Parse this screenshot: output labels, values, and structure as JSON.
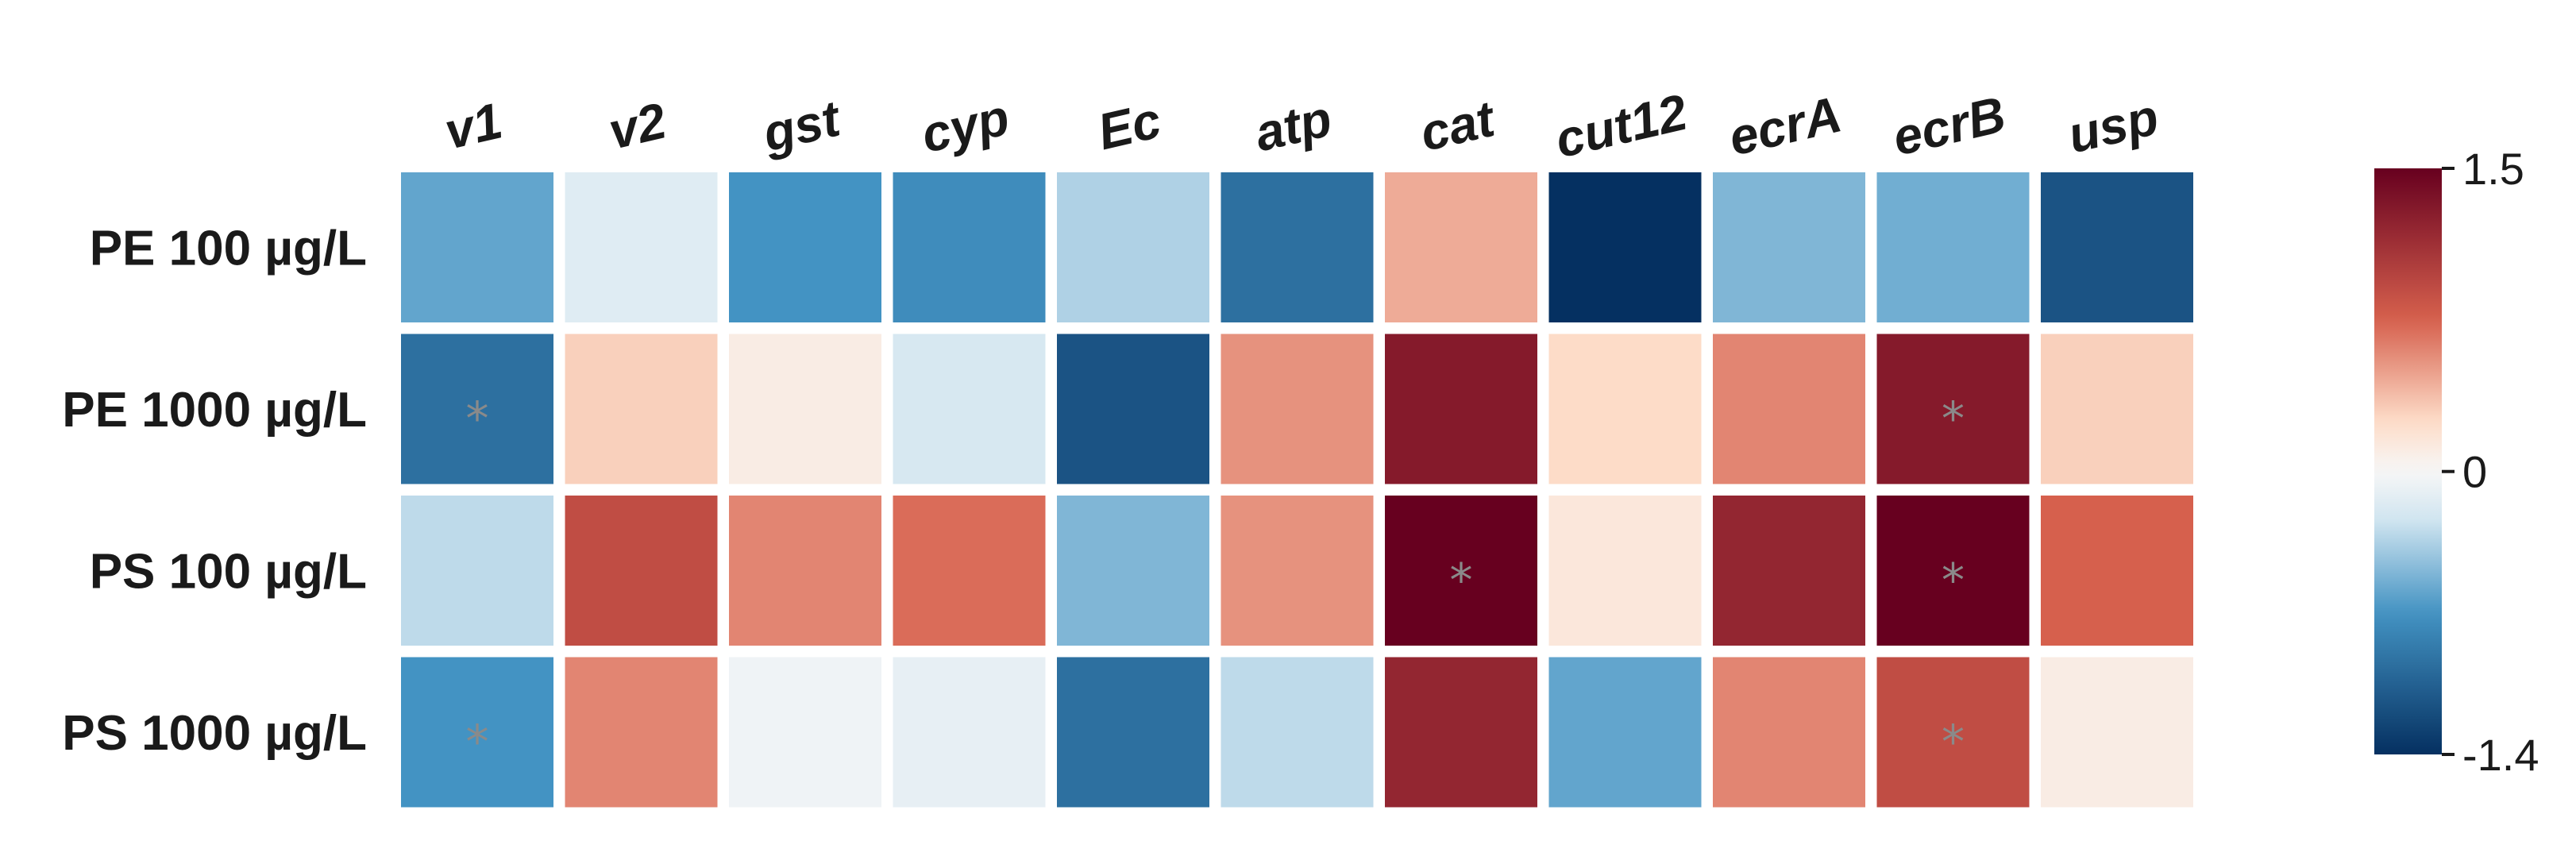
{
  "chart_data": {
    "type": "heatmap",
    "columns": [
      "v1",
      "v2",
      "gst",
      "cyp",
      "Ec",
      "atp",
      "cat",
      "cut12",
      "ecrA",
      "ecrB",
      "usp"
    ],
    "rows": [
      "PE 100 µg/L",
      "PE 1000 µg/L",
      "PS 100 µg/L",
      "PS 1000 µg/L"
    ],
    "values": [
      [
        -0.6,
        -0.15,
        -0.7,
        -0.75,
        -0.35,
        -0.95,
        0.45,
        -1.4,
        -0.5,
        -0.55,
        -1.15
      ],
      [
        -0.95,
        0.3,
        0.1,
        -0.2,
        -1.15,
        0.55,
        1.3,
        0.25,
        0.6,
        1.3,
        0.3
      ],
      [
        -0.3,
        0.9,
        0.6,
        0.7,
        -0.5,
        0.55,
        1.5,
        0.15,
        1.2,
        1.5,
        0.75
      ],
      [
        -0.7,
        0.6,
        -0.05,
        -0.1,
        -0.95,
        -0.3,
        1.2,
        -0.6,
        0.6,
        0.9,
        0.1
      ]
    ],
    "significance": [
      [
        "",
        "",
        "",
        "",
        "",
        "",
        "",
        "",
        "",
        "",
        ""
      ],
      [
        "*",
        "",
        "",
        "",
        "",
        "",
        "",
        "",
        "",
        "*",
        ""
      ],
      [
        "",
        "",
        "",
        "",
        "",
        "",
        "*",
        "",
        "",
        "*",
        ""
      ],
      [
        "*",
        "",
        "",
        "",
        "",
        "",
        "",
        "",
        "",
        "*",
        ""
      ]
    ],
    "colorbar": {
      "min": -1.4,
      "max": 1.5,
      "ticks": [
        {
          "value": 1.5,
          "label": "1.5"
        },
        {
          "value": 0,
          "label": "0"
        },
        {
          "value": -1.4,
          "label": "-1.4"
        }
      ],
      "colors": {
        "low": "#053061",
        "mid_low": "#4393c3",
        "light_low": "#d1e5f0",
        "center": "#f7f7f7",
        "light_high": "#fddbc7",
        "mid_high": "#d6604d",
        "high": "#67001f"
      }
    },
    "grid": false,
    "legend_position": "right"
  }
}
